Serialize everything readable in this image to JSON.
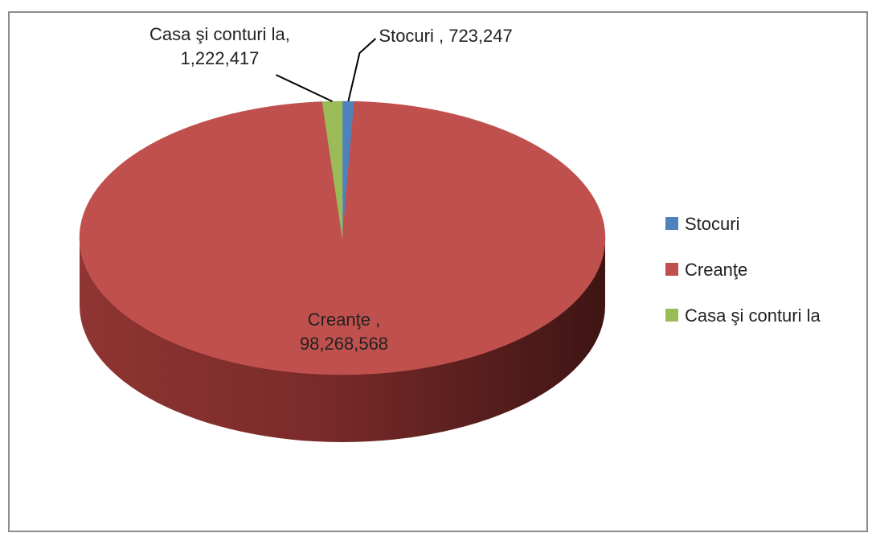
{
  "chart_data": {
    "type": "pie",
    "title": "",
    "categories": [
      "Stocuri",
      "Creanţe",
      "Casa şi conturi la"
    ],
    "values": [
      723247,
      98268568,
      1222417
    ],
    "colors": [
      "#4f81bd",
      "#c0504d",
      "#9bbb59"
    ],
    "data_labels": [
      {
        "name": "Stocuri ,",
        "value": "723,247"
      },
      {
        "name": "Creanţe ,",
        "value": "98,268,568"
      },
      {
        "name": "Casa şi conturi la,",
        "value": "1,222,417"
      }
    ],
    "legend": {
      "position": "right",
      "entries": [
        "Stocuri",
        "Creanţe",
        "Casa şi conturi la"
      ]
    },
    "style": "3d-pie"
  }
}
